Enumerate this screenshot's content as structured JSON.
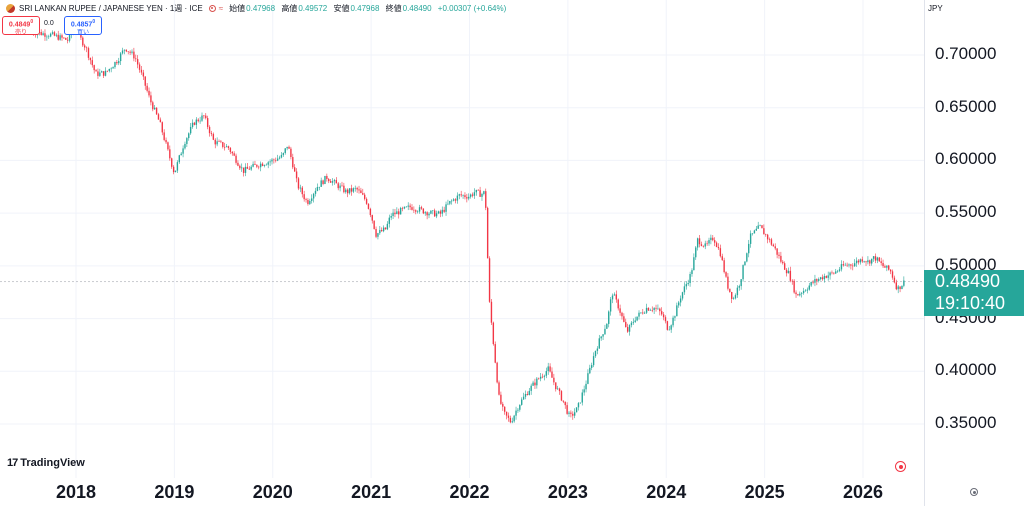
{
  "header": {
    "title": "SRI LANKAN RUPEE / JAPANESE YEN · 1週 · ICE",
    "ohlc": [
      {
        "label": "始値",
        "value": "0.47968"
      },
      {
        "label": "高値",
        "value": "0.49572"
      },
      {
        "label": "安値",
        "value": "0.47968"
      },
      {
        "label": "終値",
        "value": "0.48490"
      },
      {
        "label": "",
        "value": "+0.00307 (+0.64%)"
      }
    ]
  },
  "trade": {
    "sell_price": "0.4849",
    "sell_sup": "0",
    "sell_label": "売り",
    "spread": "0.0",
    "buy_price": "0.4857",
    "buy_sup": "0",
    "buy_label": "買い"
  },
  "axis": {
    "currency": "JPY",
    "current_price": "0.48490",
    "countdown": "19:10:40"
  },
  "branding": {
    "logo_text": "TradingView"
  },
  "chart_data": {
    "type": "candlestick",
    "timeframe": "weekly",
    "ylim": [
      0.3,
      0.73
    ],
    "y_ticks": [
      "0.35000",
      "0.40000",
      "0.45000",
      "0.50000",
      "0.55000",
      "0.60000",
      "0.65000",
      "0.70000"
    ],
    "x_ticks": [
      "2018",
      "2019",
      "2020",
      "2021",
      "2022",
      "2023",
      "2024",
      "2025",
      "2026"
    ],
    "x_range": [
      2017.55,
      2026.8
    ],
    "last_price": 0.4849,
    "up_color": "#26a69a",
    "down_color": "#f23645",
    "path": [
      [
        2017.55,
        0.722
      ],
      [
        2017.75,
        0.719
      ],
      [
        2017.92,
        0.714
      ],
      [
        2018.0,
        0.728
      ],
      [
        2018.05,
        0.715
      ],
      [
        2018.1,
        0.707
      ],
      [
        2018.2,
        0.682
      ],
      [
        2018.3,
        0.683
      ],
      [
        2018.42,
        0.695
      ],
      [
        2018.5,
        0.707
      ],
      [
        2018.6,
        0.698
      ],
      [
        2018.68,
        0.678
      ],
      [
        2018.75,
        0.658
      ],
      [
        2018.85,
        0.636
      ],
      [
        2018.93,
        0.61
      ],
      [
        2019.0,
        0.588
      ],
      [
        2019.1,
        0.617
      ],
      [
        2019.2,
        0.636
      ],
      [
        2019.3,
        0.642
      ],
      [
        2019.4,
        0.618
      ],
      [
        2019.55,
        0.612
      ],
      [
        2019.7,
        0.59
      ],
      [
        2019.85,
        0.596
      ],
      [
        2020.0,
        0.6
      ],
      [
        2020.1,
        0.604
      ],
      [
        2020.15,
        0.615
      ],
      [
        2020.2,
        0.598
      ],
      [
        2020.25,
        0.577
      ],
      [
        2020.35,
        0.56
      ],
      [
        2020.45,
        0.575
      ],
      [
        2020.55,
        0.584
      ],
      [
        2020.65,
        0.577
      ],
      [
        2020.75,
        0.57
      ],
      [
        2020.85,
        0.573
      ],
      [
        2020.95,
        0.562
      ],
      [
        2021.0,
        0.548
      ],
      [
        2021.05,
        0.53
      ],
      [
        2021.15,
        0.535
      ],
      [
        2021.2,
        0.548
      ],
      [
        2021.3,
        0.552
      ],
      [
        2021.4,
        0.556
      ],
      [
        2021.5,
        0.553
      ],
      [
        2021.6,
        0.55
      ],
      [
        2021.7,
        0.549
      ],
      [
        2021.8,
        0.56
      ],
      [
        2021.9,
        0.567
      ],
      [
        2022.0,
        0.566
      ],
      [
        2022.05,
        0.57
      ],
      [
        2022.12,
        0.568
      ],
      [
        2022.16,
        0.57
      ],
      [
        2022.2,
        0.468
      ],
      [
        2022.25,
        0.42
      ],
      [
        2022.3,
        0.375
      ],
      [
        2022.35,
        0.36
      ],
      [
        2022.42,
        0.352
      ],
      [
        2022.5,
        0.368
      ],
      [
        2022.6,
        0.382
      ],
      [
        2022.72,
        0.395
      ],
      [
        2022.8,
        0.402
      ],
      [
        2022.88,
        0.385
      ],
      [
        2022.95,
        0.372
      ],
      [
        2023.02,
        0.356
      ],
      [
        2023.1,
        0.365
      ],
      [
        2023.18,
        0.388
      ],
      [
        2023.28,
        0.42
      ],
      [
        2023.4,
        0.447
      ],
      [
        2023.45,
        0.475
      ],
      [
        2023.52,
        0.46
      ],
      [
        2023.6,
        0.437
      ],
      [
        2023.68,
        0.45
      ],
      [
        2023.8,
        0.46
      ],
      [
        2023.88,
        0.46
      ],
      [
        2023.95,
        0.455
      ],
      [
        2024.02,
        0.44
      ],
      [
        2024.08,
        0.452
      ],
      [
        2024.15,
        0.472
      ],
      [
        2024.25,
        0.492
      ],
      [
        2024.32,
        0.525
      ],
      [
        2024.4,
        0.518
      ],
      [
        2024.48,
        0.527
      ],
      [
        2024.55,
        0.512
      ],
      [
        2024.62,
        0.482
      ],
      [
        2024.68,
        0.468
      ],
      [
        2024.75,
        0.485
      ],
      [
        2024.85,
        0.527
      ],
      [
        2024.95,
        0.537
      ],
      [
        2025.02,
        0.528
      ],
      [
        2025.1,
        0.517
      ],
      [
        2025.18,
        0.502
      ],
      [
        2025.25,
        0.492
      ],
      [
        2025.32,
        0.472
      ],
      [
        2025.4,
        0.477
      ],
      [
        2025.5,
        0.485
      ],
      [
        2025.6,
        0.49
      ],
      [
        2025.7,
        0.493
      ],
      [
        2025.8,
        0.5
      ],
      [
        2025.9,
        0.502
      ],
      [
        2026.0,
        0.507
      ],
      [
        2026.05,
        0.504
      ],
      [
        2026.12,
        0.508
      ],
      [
        2026.2,
        0.5
      ],
      [
        2026.28,
        0.495
      ],
      [
        2026.35,
        0.478
      ],
      [
        2026.42,
        0.4849
      ]
    ]
  }
}
